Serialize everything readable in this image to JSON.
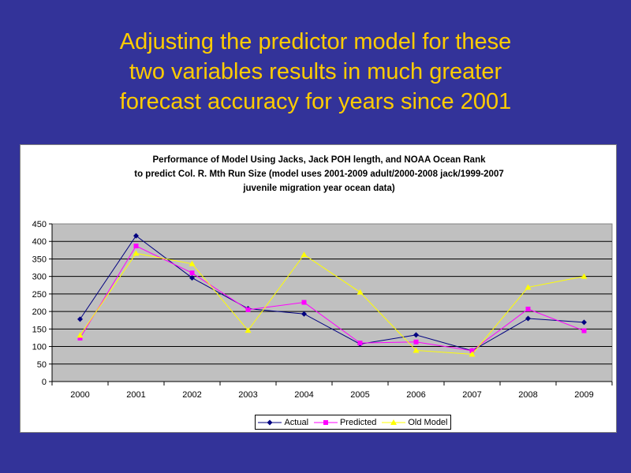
{
  "slide": {
    "title_lines": [
      "Adjusting the predictor model for these",
      "two variables results in much greater",
      "forecast accuracy for years since 2001"
    ]
  },
  "colors": {
    "background": "#333399",
    "title_text": "#FFCC00",
    "plot_area": "#C0C0C0",
    "actual": "#000080",
    "predicted": "#FF00FF",
    "old_model": "#FFFF00"
  },
  "chart_data": {
    "type": "line",
    "title_lines": [
      "Performance of Model Using Jacks, Jack POH length, and NOAA Ocean Rank",
      "to predict Col. R. Mth Run Size (model uses 2001-2009 adult/2000-2008 jack/1999-2007",
      "juvenile migration year ocean data)"
    ],
    "xlabel": "",
    "ylabel": "",
    "categories": [
      "2000",
      "2001",
      "2002",
      "2003",
      "2004",
      "2005",
      "2006",
      "2007",
      "2008",
      "2009"
    ],
    "ylim": [
      0,
      450
    ],
    "yticks": [
      0,
      50,
      100,
      150,
      200,
      250,
      300,
      350,
      400,
      450
    ],
    "grid": true,
    "legend_position": "bottom",
    "series": [
      {
        "name": "Actual",
        "marker": "diamond",
        "color": "#000080",
        "values": [
          178,
          416,
          296,
          208,
          193,
          107,
          133,
          88,
          180,
          169
        ]
      },
      {
        "name": "Predicted",
        "marker": "square",
        "color": "#FF00FF",
        "values": [
          124,
          387,
          310,
          205,
          226,
          110,
          113,
          88,
          207,
          145
        ]
      },
      {
        "name": "Old Model",
        "marker": "triangle",
        "color": "#FFFF00",
        "values": [
          132,
          366,
          336,
          146,
          362,
          255,
          89,
          78,
          269,
          300
        ]
      }
    ]
  }
}
